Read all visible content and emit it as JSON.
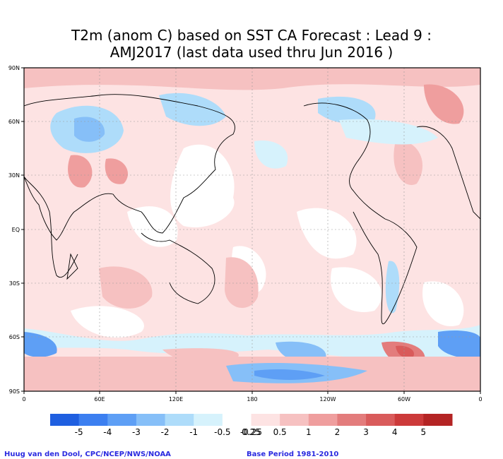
{
  "title_line1": "T2m (anom C) based on SST CA Forecast : Lead 9 :",
  "title_line2": "AMJ2017 (last data used thru Jun 2016 )",
  "map": {
    "lat_labels": [
      "90N",
      "60N",
      "30N",
      "EQ",
      "30S",
      "60S",
      "90S"
    ],
    "lon_labels": [
      "0",
      "60E",
      "120E",
      "180",
      "120W",
      "60W",
      "0"
    ]
  },
  "colorbar": {
    "colors": [
      "#1f5fe0",
      "#3c7ff0",
      "#5e9ff5",
      "#86bff8",
      "#aedcfa",
      "#d6f2fc",
      "#ffffff",
      "#fde3e3",
      "#f6c1c1",
      "#ef9e9e",
      "#e37c7c",
      "#d95b5b",
      "#cc3a3a",
      "#b42424"
    ],
    "labels": [
      "-5",
      "-4",
      "-3",
      "-2",
      "-1",
      "-0.5",
      "-0.25",
      "0.25",
      "0.5",
      "1",
      "2",
      "3",
      "4",
      "5"
    ]
  },
  "credit_left": "Huug van den Dool, CPC/NCEP/NWS/NOAA",
  "credit_right": "Base Period 1981-2010"
}
